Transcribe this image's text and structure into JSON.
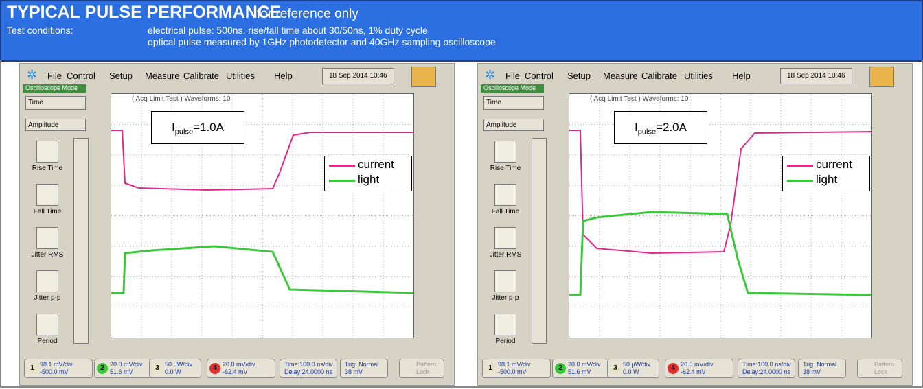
{
  "header": {
    "title": "TYPICAL PULSE PERFORMANCE",
    "subtitle": "for reference only",
    "conditions_label": "Test conditions:",
    "conditions": [
      "electrical pulse: 500ns, rise/fall time about  30/50ns, 1% duty cycle",
      "optical pulse measured by 1GHz photodetector and 40GHz sampling oscilloscope"
    ]
  },
  "panels": [
    {
      "menu": [
        "File",
        "Control",
        "Setup",
        "Measure",
        "Calibrate",
        "Utilities",
        "Help"
      ],
      "datetime": "18 Sep 2014  10:46",
      "mode": "Oscilloscope Mode",
      "dropdowns": [
        "Time",
        "Amplitude"
      ],
      "buttons": [
        "Rise Time",
        "Fall Time",
        "Jitter RMS",
        "Jitter p-p",
        "Period"
      ],
      "graph_header": "( Acq Limit Test )  Waveforms: 10",
      "annotation": {
        "main": "I",
        "sub": "pulse",
        "value": "=1.0A"
      },
      "legend": [
        "current",
        "light"
      ],
      "channels": [
        {
          "num": "1",
          "scale": "98.1 mV/div",
          "offset": "-500.0 mV"
        },
        {
          "num": "2",
          "scale": "20.0 mV/div",
          "offset": "51.6 mV"
        },
        {
          "num": "3",
          "scale": "50 µW/div",
          "offset": "0.0 W"
        },
        {
          "num": "4",
          "scale": "20.0 mV/div",
          "offset": "-62.4 mV"
        }
      ],
      "time": [
        "Time:100.0 ns/div",
        "Delay:24.0000 ns"
      ],
      "trig": [
        "Trig: Normal",
        "38 mV"
      ],
      "pattern": [
        "Pattern",
        "Lock"
      ]
    },
    {
      "menu": [
        "File",
        "Control",
        "Setup",
        "Measure",
        "Calibrate",
        "Utilities",
        "Help"
      ],
      "datetime": "18 Sep 2014  10:46",
      "mode": "Oscilloscope Mode",
      "dropdowns": [
        "Time",
        "Amplitude"
      ],
      "buttons": [
        "Rise Time",
        "Fall Time",
        "Jitter RMS",
        "Jitter p-p",
        "Period"
      ],
      "graph_header": "( Acq Limit Test )  Waveforms: 10",
      "annotation": {
        "main": "I",
        "sub": "pulse",
        "value": "=2.0A"
      },
      "legend": [
        "current",
        "light"
      ],
      "channels": [
        {
          "num": "1",
          "scale": "98.1 mV/div",
          "offset": "-500.0 mV"
        },
        {
          "num": "2",
          "scale": "20.0 mV/div",
          "offset": "51.6 mV"
        },
        {
          "num": "3",
          "scale": "50 µW/div",
          "offset": "0.0 W"
        },
        {
          "num": "4",
          "scale": "20.0 mV/div",
          "offset": "-62.4 mV"
        }
      ],
      "time": [
        "Time:100.0 ns/div",
        "Delay:24.0000 ns"
      ],
      "trig": [
        "Trig: Normal",
        "38 mV"
      ],
      "pattern": [
        "Pattern",
        "Lock"
      ]
    }
  ]
}
